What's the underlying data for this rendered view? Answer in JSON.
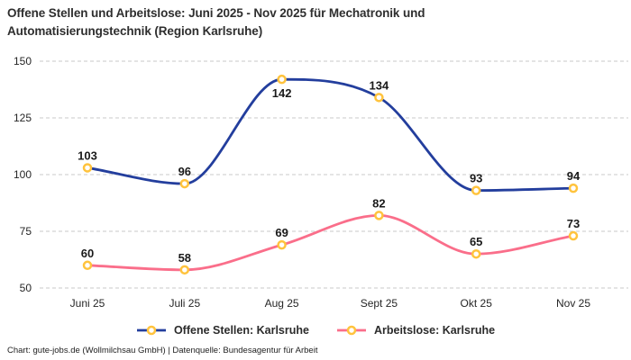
{
  "title": "Offene Stellen und Arbeitslose: Juni 2025 - Nov 2025 für Mechatronik und Automatisierungstechnik (Region Karlsruhe)",
  "footer": "Chart: gute-jobs.de (Wollmilchsau GmbH) | Datenquelle: Bundesagentur für Arbeit",
  "chart_data": {
    "type": "line",
    "title": "Offene Stellen und Arbeitslose: Juni 2025 - Nov 2025 für Mechatronik und Automatisierungstechnik (Region Karlsruhe)",
    "categories": [
      "Juni 25",
      "Juli 25",
      "Aug 25",
      "Sept 25",
      "Okt 25",
      "Nov 25"
    ],
    "series": [
      {
        "name": "Offene Stellen: Karlsruhe",
        "color": "#233E9D",
        "values": [
          103,
          96,
          142,
          134,
          93,
          94
        ]
      },
      {
        "name": "Arbeitslose: Karlsruhe",
        "color": "#FA6E8A",
        "values": [
          60,
          58,
          69,
          82,
          65,
          73
        ]
      }
    ],
    "yticks": [
      50,
      75,
      100,
      125,
      150
    ],
    "ylim": [
      50,
      150
    ],
    "xlabel": "",
    "ylabel": "",
    "grid": "horizontal-dashed",
    "grid_color": "#c9c9c9",
    "legend_position": "bottom",
    "curve": "monotone",
    "marker": {
      "shape": "ring",
      "color": "#FFC33D",
      "fill": "#ffffff"
    },
    "label_color": "#1a1a1a",
    "tick_color": "#262626"
  }
}
